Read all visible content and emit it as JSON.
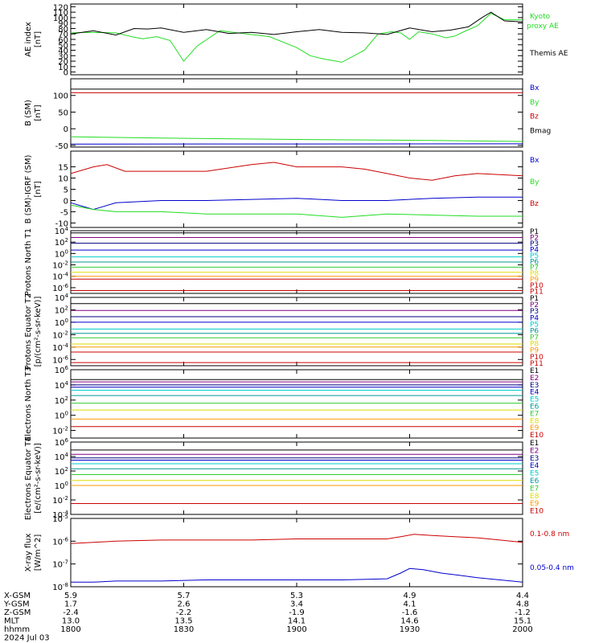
{
  "colors": {
    "black": "#000000",
    "red": "#cc0000",
    "green": "#22dd22",
    "blue": "#0000cc",
    "navy": "#000080",
    "purple": "#800080",
    "cyan": "#00cccc",
    "teal": "#009999",
    "lime": "#33cc33",
    "yellow": "#dddd00",
    "orange": "#ff9900",
    "brightgreen": "#00ff00"
  },
  "chart_data": [
    {
      "type": "line",
      "id": "ae",
      "ylabel": "AE index",
      "yunit": "[nT]",
      "ylim": [
        -5,
        125
      ],
      "yticks": [
        0,
        10,
        20,
        30,
        40,
        50,
        60,
        70,
        80,
        90,
        100,
        110,
        120
      ],
      "series": [
        {
          "name": "Kyoto proxy AE",
          "color": "#22dd22",
          "x": [
            0,
            0.04,
            0.1,
            0.14,
            0.16,
            0.19,
            0.22,
            0.25,
            0.28,
            0.33,
            0.38,
            0.44,
            0.5,
            0.53,
            0.56,
            0.6,
            0.65,
            0.68,
            0.71,
            0.73,
            0.75,
            0.77,
            0.8,
            0.83,
            0.85,
            0.87,
            0.9,
            0.93,
            0.96,
            1
          ],
          "y": [
            72,
            73,
            72,
            64,
            61,
            65,
            58,
            20,
            48,
            76,
            71,
            65,
            45,
            30,
            24,
            18,
            40,
            70,
            74,
            72,
            60,
            74,
            70,
            63,
            66,
            74,
            85,
            108,
            96,
            96
          ]
        },
        {
          "name": "Themis AE",
          "color": "#000000",
          "x": [
            0,
            0.05,
            0.1,
            0.14,
            0.17,
            0.2,
            0.25,
            0.3,
            0.35,
            0.4,
            0.45,
            0.5,
            0.55,
            0.6,
            0.65,
            0.7,
            0.75,
            0.8,
            0.84,
            0.88,
            0.91,
            0.93,
            0.96,
            1
          ],
          "y": [
            70,
            76,
            68,
            80,
            79,
            81,
            73,
            78,
            71,
            73,
            69,
            74,
            78,
            73,
            72,
            69,
            81,
            74,
            77,
            83,
            100,
            110,
            94,
            92
          ]
        }
      ]
    },
    {
      "type": "line",
      "id": "bsm",
      "ylabel": "B (SM)",
      "yunit": "[nT]",
      "ylim": [
        -55,
        150
      ],
      "yticks": [
        -50,
        0,
        50,
        100
      ],
      "series": [
        {
          "name": "Bx",
          "color": "#0000cc",
          "x": [
            0,
            1
          ],
          "y": [
            -46,
            -45
          ]
        },
        {
          "name": "By",
          "color": "#22dd22",
          "x": [
            0,
            0.2,
            0.5,
            0.8,
            1
          ],
          "y": [
            -24,
            -28,
            -32,
            -35,
            -38
          ]
        },
        {
          "name": "Bz",
          "color": "#cc0000",
          "x": [
            0,
            1
          ],
          "y": [
            108,
            108
          ]
        },
        {
          "name": "Bmag",
          "color": "#000000",
          "x": [
            0,
            1
          ],
          "y": [
            119,
            119
          ]
        }
      ]
    },
    {
      "type": "line",
      "id": "bigrf",
      "ylabel": "B (SM)-IGRF (SM)",
      "yunit": "[nT]",
      "ylim": [
        -12,
        22
      ],
      "yticks": [
        -10,
        -5,
        0,
        5,
        10,
        15
      ],
      "series": [
        {
          "name": "Bx",
          "color": "#0000cc",
          "x": [
            0,
            0.05,
            0.1,
            0.2,
            0.3,
            0.4,
            0.5,
            0.6,
            0.7,
            0.8,
            0.9,
            1
          ],
          "y": [
            -1,
            -4,
            -1,
            0,
            0,
            0.5,
            1,
            0,
            0,
            1,
            1.5,
            1.5
          ]
        },
        {
          "name": "By",
          "color": "#22dd22",
          "x": [
            0,
            0.05,
            0.1,
            0.2,
            0.3,
            0.4,
            0.5,
            0.6,
            0.7,
            0.8,
            0.9,
            1
          ],
          "y": [
            -2,
            -4,
            -5,
            -5,
            -6,
            -6,
            -6,
            -7.5,
            -6,
            -6.5,
            -7,
            -7
          ]
        },
        {
          "name": "Bz",
          "color": "#cc0000",
          "x": [
            0,
            0.05,
            0.08,
            0.12,
            0.2,
            0.3,
            0.4,
            0.45,
            0.5,
            0.6,
            0.65,
            0.7,
            0.75,
            0.8,
            0.85,
            0.9,
            1
          ],
          "y": [
            12,
            15,
            16,
            13,
            13,
            13,
            16,
            17,
            15,
            15,
            14,
            12,
            10,
            9,
            11,
            12,
            11
          ]
        }
      ]
    },
    {
      "type": "line",
      "id": "protons-north",
      "ylabel": "Protons North T1",
      "ylog": true,
      "ylim": [
        -7,
        4
      ],
      "ytickexp": [
        -6,
        -4,
        -2,
        0,
        2,
        4
      ],
      "series": [
        {
          "name": "P1",
          "color": "#000000",
          "y": 3.6
        },
        {
          "name": "P2",
          "color": "#800080",
          "y": 2.8
        },
        {
          "name": "P3",
          "color": "#000080",
          "y": 1.8
        },
        {
          "name": "P4",
          "color": "#0000cc",
          "y": 0.6
        },
        {
          "name": "P5",
          "color": "#00cccc",
          "y": -0.6
        },
        {
          "name": "P6",
          "color": "#009999",
          "y": -1.5
        },
        {
          "name": "P7",
          "color": "#33cc33",
          "y": -2.4
        },
        {
          "name": "P8",
          "color": "#dddd00",
          "y": -3.3
        },
        {
          "name": "P9",
          "color": "#ff9900",
          "y": -4.0
        },
        {
          "name": "P10",
          "color": "#cc0000",
          "y": -4.5
        },
        {
          "name": "P11",
          "color": "#cc0000",
          "y": -6.5
        }
      ]
    },
    {
      "type": "line",
      "id": "protons-eq",
      "ylabel": "Protons Equator T2",
      "yunit": "[p/(cm²-s-sr-keV)]",
      "ylog": true,
      "ylim": [
        -7,
        4
      ],
      "ytickexp": [
        -6,
        -4,
        -2,
        0,
        2,
        4
      ],
      "series": [
        {
          "name": "P1",
          "color": "#000000",
          "y": 3.0
        },
        {
          "name": "P2",
          "color": "#800080",
          "y": 1.9
        },
        {
          "name": "P3",
          "color": "#000080",
          "y": 0.9
        },
        {
          "name": "P4",
          "color": "#0000cc",
          "y": 0.0
        },
        {
          "name": "P5",
          "color": "#00cccc",
          "y": -1.1
        },
        {
          "name": "P6",
          "color": "#009999",
          "y": -1.8
        },
        {
          "name": "P7",
          "color": "#33cc33",
          "y": -2.5
        },
        {
          "name": "P8",
          "color": "#dddd00",
          "y": -3.5
        },
        {
          "name": "P9",
          "color": "#ff9900",
          "y": -4.0
        },
        {
          "name": "P10",
          "color": "#cc0000",
          "y": -4.8
        },
        {
          "name": "P11",
          "color": "#cc0000",
          "y": -6.5
        }
      ]
    },
    {
      "type": "line",
      "id": "electrons-north",
      "ylabel": "Electrons North T3",
      "ylog": true,
      "ylim": [
        -3,
        6
      ],
      "ytickexp": [
        -2,
        0,
        2,
        4,
        6
      ],
      "series": [
        {
          "name": "E1",
          "color": "#000000",
          "y": 4.7
        },
        {
          "name": "E2",
          "color": "#800080",
          "y": 4.4
        },
        {
          "name": "E3",
          "color": "#000080",
          "y": 4.0
        },
        {
          "name": "E4",
          "color": "#0000cc",
          "y": 3.7
        },
        {
          "name": "E5",
          "color": "#00cccc",
          "y": 3.3
        },
        {
          "name": "E6",
          "color": "#009999",
          "y": 2.6
        },
        {
          "name": "E7",
          "color": "#33cc33",
          "y": 1.6
        },
        {
          "name": "E8",
          "color": "#dddd00",
          "y": 0.7
        },
        {
          "name": "E9",
          "color": "#ff9900",
          "y": -0.5
        },
        {
          "name": "E10",
          "color": "#cc0000",
          "y": -1.5
        }
      ]
    },
    {
      "type": "line",
      "id": "electrons-eq",
      "ylabel": "Electrons Equator T4",
      "yunit": "[e/(cm²-s-sr-keV)]",
      "ylog": true,
      "ylim": [
        -4,
        6
      ],
      "ytickexp": [
        -4,
        -2,
        0,
        2,
        4,
        6
      ],
      "series": [
        {
          "name": "E1",
          "color": "#000000",
          "y": 4.9
        },
        {
          "name": "E2",
          "color": "#800080",
          "y": 4.3
        },
        {
          "name": "E3",
          "color": "#000080",
          "y": 3.8
        },
        {
          "name": "E4",
          "color": "#0000cc",
          "y": 3.5
        },
        {
          "name": "E5",
          "color": "#00cccc",
          "y": 3.0
        },
        {
          "name": "E6",
          "color": "#009999",
          "y": 2.3
        },
        {
          "name": "E7",
          "color": "#33cc33",
          "y": 1.5
        },
        {
          "name": "E8",
          "color": "#dddd00",
          "y": 0.7
        },
        {
          "name": "E9",
          "color": "#ff9900",
          "y": 0.0
        },
        {
          "name": "E10",
          "color": "#cc0000",
          "y": -2.5
        }
      ]
    },
    {
      "type": "line",
      "id": "xray",
      "ylabel": "X-ray flux",
      "yunit": "[W/m^2]",
      "ylog": true,
      "ylim": [
        -8,
        -5
      ],
      "ytickexp": [
        -8,
        -7,
        -6,
        -5
      ],
      "series": [
        {
          "name": "0.1-0.8 nm",
          "color": "#cc0000",
          "x": [
            0,
            0.05,
            0.1,
            0.2,
            0.3,
            0.4,
            0.5,
            0.6,
            0.7,
            0.73,
            0.76,
            0.8,
            0.85,
            0.9,
            0.95,
            1
          ],
          "y": [
            -6.1,
            -6.05,
            -6.0,
            -5.95,
            -5.95,
            -5.95,
            -5.9,
            -5.9,
            -5.9,
            -5.8,
            -5.7,
            -5.75,
            -5.8,
            -5.85,
            -5.95,
            -6.05
          ]
        },
        {
          "name": "0.05-0.4 nm",
          "color": "#0000cc",
          "x": [
            0,
            0.05,
            0.1,
            0.2,
            0.3,
            0.4,
            0.5,
            0.6,
            0.7,
            0.73,
            0.75,
            0.78,
            0.82,
            0.86,
            0.9,
            0.95,
            1
          ],
          "y": [
            -7.8,
            -7.8,
            -7.75,
            -7.75,
            -7.7,
            -7.7,
            -7.7,
            -7.7,
            -7.65,
            -7.4,
            -7.2,
            -7.25,
            -7.4,
            -7.5,
            -7.6,
            -7.7,
            -7.8
          ]
        }
      ]
    }
  ],
  "footer": {
    "rows": [
      {
        "label": "X-GSM",
        "values": [
          "5.9",
          "5.7",
          "5.3",
          "4.9",
          "4.4"
        ]
      },
      {
        "label": "Y-GSM",
        "values": [
          "1.7",
          "2.6",
          "3.4",
          "4.1",
          "4.8"
        ]
      },
      {
        "label": "Z-GSM",
        "values": [
          "-2.4",
          "-2.2",
          "-1.9",
          "-1.6",
          "-1.2"
        ]
      },
      {
        "label": "MLT",
        "values": [
          "13.0",
          "13.5",
          "14.1",
          "14.6",
          "15.1"
        ]
      },
      {
        "label": "hhmm",
        "values": [
          "1800",
          "1830",
          "1900",
          "1930",
          "2000"
        ]
      }
    ],
    "date": "2024 Jul 03"
  }
}
